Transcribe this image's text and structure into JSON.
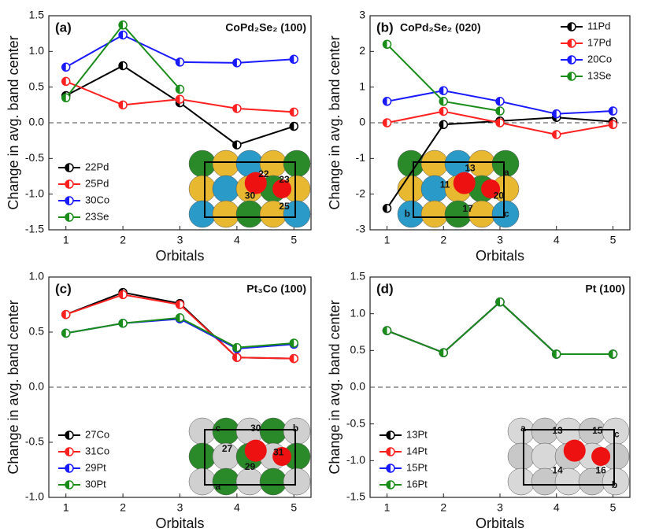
{
  "chart_data": [
    {
      "type": "line",
      "label": "(a)",
      "title": "CoPd₂Se₂ (100)",
      "x_label": "Orbitals",
      "y_label": "Change in avg. band center",
      "x": [
        1,
        2,
        3,
        4,
        5
      ],
      "xlim": [
        0.7,
        5.3
      ],
      "xticks": [
        1,
        2,
        3,
        4,
        5
      ],
      "ylim": [
        -1.5,
        1.5
      ],
      "yticks": [
        -1.5,
        {
          "value": -1,
          "label": "-1.0"
        },
        -0.5,
        {
          "value": 0,
          "label": "0.0"
        },
        0.5,
        {
          "value": 1,
          "label": "1.0"
        },
        1.5
      ],
      "hline": 0,
      "legend": "lower left",
      "series": [
        {
          "name": "22Pd",
          "color": "#000000",
          "values": [
            0.38,
            0.8,
            0.28,
            -0.31,
            -0.05
          ]
        },
        {
          "name": "25Pd",
          "color": "#ff2020",
          "values": [
            0.58,
            0.25,
            0.33,
            0.2,
            0.15
          ]
        },
        {
          "name": "30Co",
          "color": "#1a1aff",
          "values": [
            0.78,
            1.23,
            0.85,
            0.84,
            0.89
          ]
        },
        {
          "name": "23Se",
          "color": "#1a8c1a",
          "values": [
            0.35,
            1.37,
            0.47,
            null,
            null
          ]
        }
      ],
      "inset_labels": [
        "22",
        "23",
        "30",
        "25"
      ]
    },
    {
      "type": "line",
      "label": "(b)",
      "title": "CoPd₂Se₂ (020)",
      "x_label": "Orbitals",
      "y_label": "Change in avg. band center",
      "x": [
        1,
        2,
        3,
        4,
        5
      ],
      "xlim": [
        0.7,
        5.3
      ],
      "xticks": [
        1,
        2,
        3,
        4,
        5
      ],
      "ylim": [
        -3,
        3
      ],
      "yticks": [
        -3,
        -2,
        -1,
        0,
        1,
        2,
        3
      ],
      "hline": 0,
      "legend": "upper right",
      "series": [
        {
          "name": "11Pd",
          "color": "#000000",
          "values": [
            -2.4,
            -0.05,
            0.05,
            0.15,
            0.03
          ]
        },
        {
          "name": "17Pd",
          "color": "#ff2020",
          "values": [
            0.0,
            0.32,
            0.0,
            -0.33,
            -0.05
          ]
        },
        {
          "name": "20Co",
          "color": "#1a1aff",
          "values": [
            0.6,
            0.9,
            0.6,
            0.25,
            0.33
          ]
        },
        {
          "name": "13Se",
          "color": "#1a8c1a",
          "values": [
            2.2,
            0.6,
            0.33,
            null,
            null
          ]
        }
      ],
      "inset_labels": [
        "13",
        "a",
        "11",
        "20",
        "17",
        "b",
        "c"
      ]
    },
    {
      "type": "line",
      "label": "(c)",
      "title": "Pt₃Co (100)",
      "x_label": "Orbitals",
      "y_label": "Change in avg. band center",
      "x": [
        1,
        2,
        3,
        4,
        5
      ],
      "xlim": [
        0.7,
        5.3
      ],
      "xticks": [
        1,
        2,
        3,
        4,
        5
      ],
      "ylim": [
        -1,
        1
      ],
      "yticks": [
        {
          "value": -1,
          "label": "-1.0"
        },
        -0.5,
        {
          "value": 0,
          "label": "0.0"
        },
        0.5,
        {
          "value": 1,
          "label": "1.0"
        }
      ],
      "hline": 0,
      "legend": "lower left",
      "series": [
        {
          "name": "27Co",
          "color": "#000000",
          "values": [
            0.66,
            0.86,
            0.76,
            0.27,
            0.26
          ]
        },
        {
          "name": "31Co",
          "color": "#ff2020",
          "values": [
            0.66,
            0.84,
            0.75,
            0.27,
            0.26
          ]
        },
        {
          "name": "29Pt",
          "color": "#1a1aff",
          "values": [
            0.49,
            0.58,
            0.62,
            0.35,
            0.39
          ]
        },
        {
          "name": "30Pt",
          "color": "#1a8c1a",
          "values": [
            0.49,
            0.58,
            0.63,
            0.36,
            0.4
          ]
        }
      ],
      "inset_labels": [
        "30",
        "b",
        "c",
        "27",
        "31",
        "29",
        "a"
      ]
    },
    {
      "type": "line",
      "label": "(d)",
      "title": "Pt (100)",
      "x_label": "Orbitals",
      "y_label": "Change in avg. band center",
      "x": [
        1,
        2,
        3,
        4,
        5
      ],
      "xlim": [
        0.7,
        5.3
      ],
      "xticks": [
        1,
        2,
        3,
        4,
        5
      ],
      "ylim": [
        -1.5,
        1.5
      ],
      "yticks": [
        -1.5,
        {
          "value": -1,
          "label": "-1.0"
        },
        -0.5,
        {
          "value": 0,
          "label": "0.0"
        },
        0.5,
        {
          "value": 1,
          "label": "1.0"
        },
        1.5
      ],
      "hline": 0,
      "legend": "lower left",
      "series": [
        {
          "name": "13Pt",
          "color": "#000000",
          "values": [
            0.77,
            0.47,
            1.16,
            0.45,
            0.45
          ]
        },
        {
          "name": "14Pt",
          "color": "#ff2020",
          "values": [
            0.77,
            0.47,
            1.16,
            0.45,
            0.45
          ]
        },
        {
          "name": "15Pt",
          "color": "#1a1aff",
          "values": [
            0.77,
            0.47,
            1.16,
            0.45,
            0.45
          ]
        },
        {
          "name": "16Pt",
          "color": "#1a8c1a",
          "values": [
            0.77,
            0.47,
            1.16,
            0.45,
            0.45
          ]
        }
      ],
      "inset_labels": [
        "a",
        "13",
        "15",
        "c",
        "14",
        "16",
        "b"
      ]
    }
  ]
}
